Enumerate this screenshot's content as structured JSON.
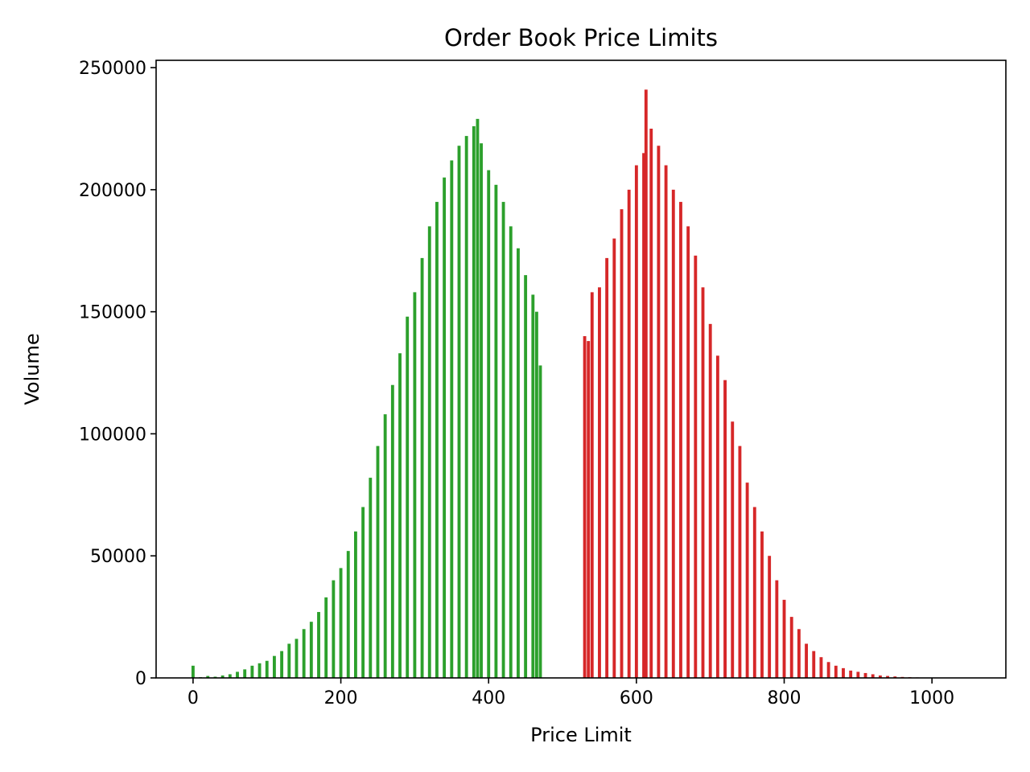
{
  "chart_data": {
    "type": "bar",
    "title": "Order Book Price Limits",
    "xlabel": "Price Limit",
    "ylabel": "Volume",
    "xlim": [
      -50,
      1100
    ],
    "ylim": [
      0,
      253000
    ],
    "xticks": [
      0,
      200,
      400,
      600,
      800,
      1000
    ],
    "yticks": [
      0,
      50000,
      100000,
      150000,
      200000,
      250000
    ],
    "grid": false,
    "legend": "none",
    "colors": {
      "bid": "#2ca02c",
      "ask": "#d62728"
    },
    "series": [
      {
        "side": "bid",
        "color": "#2ca02c",
        "x": [
          0,
          10,
          20,
          30,
          40,
          50,
          60,
          70,
          80,
          90,
          100,
          110,
          120,
          130,
          140,
          150,
          160,
          170,
          180,
          190,
          200,
          210,
          220,
          230,
          240,
          250,
          260,
          270,
          280,
          290,
          300,
          310,
          320,
          330,
          340,
          350,
          360,
          370,
          380,
          385,
          390,
          400,
          410,
          420,
          430,
          440,
          450,
          460,
          465,
          470
        ],
        "values": [
          5000,
          300,
          800,
          500,
          1000,
          1500,
          2500,
          3500,
          5000,
          6000,
          7000,
          9000,
          11000,
          14000,
          16000,
          20000,
          23000,
          27000,
          33000,
          40000,
          45000,
          52000,
          60000,
          70000,
          82000,
          95000,
          108000,
          120000,
          133000,
          148000,
          158000,
          172000,
          185000,
          195000,
          205000,
          212000,
          218000,
          222000,
          226000,
          229000,
          219000,
          208000,
          202000,
          195000,
          185000,
          176000,
          165000,
          157000,
          150000,
          128000
        ]
      },
      {
        "side": "ask",
        "color": "#d62728",
        "x": [
          530,
          535,
          540,
          550,
          560,
          570,
          580,
          590,
          600,
          610,
          613,
          620,
          630,
          640,
          650,
          660,
          670,
          680,
          690,
          700,
          710,
          720,
          730,
          740,
          750,
          760,
          770,
          780,
          790,
          800,
          810,
          820,
          830,
          840,
          850,
          860,
          870,
          880,
          890,
          900,
          910,
          920,
          930,
          940,
          950,
          960,
          970,
          980
        ],
        "values": [
          140000,
          138000,
          158000,
          160000,
          172000,
          180000,
          192000,
          200000,
          210000,
          215000,
          241000,
          225000,
          218000,
          210000,
          200000,
          195000,
          185000,
          173000,
          160000,
          145000,
          132000,
          122000,
          105000,
          95000,
          80000,
          70000,
          60000,
          50000,
          40000,
          32000,
          25000,
          20000,
          14000,
          11000,
          8500,
          6500,
          5000,
          4000,
          3000,
          2500,
          2000,
          1500,
          1000,
          800,
          600,
          400,
          300,
          200
        ]
      }
    ]
  }
}
